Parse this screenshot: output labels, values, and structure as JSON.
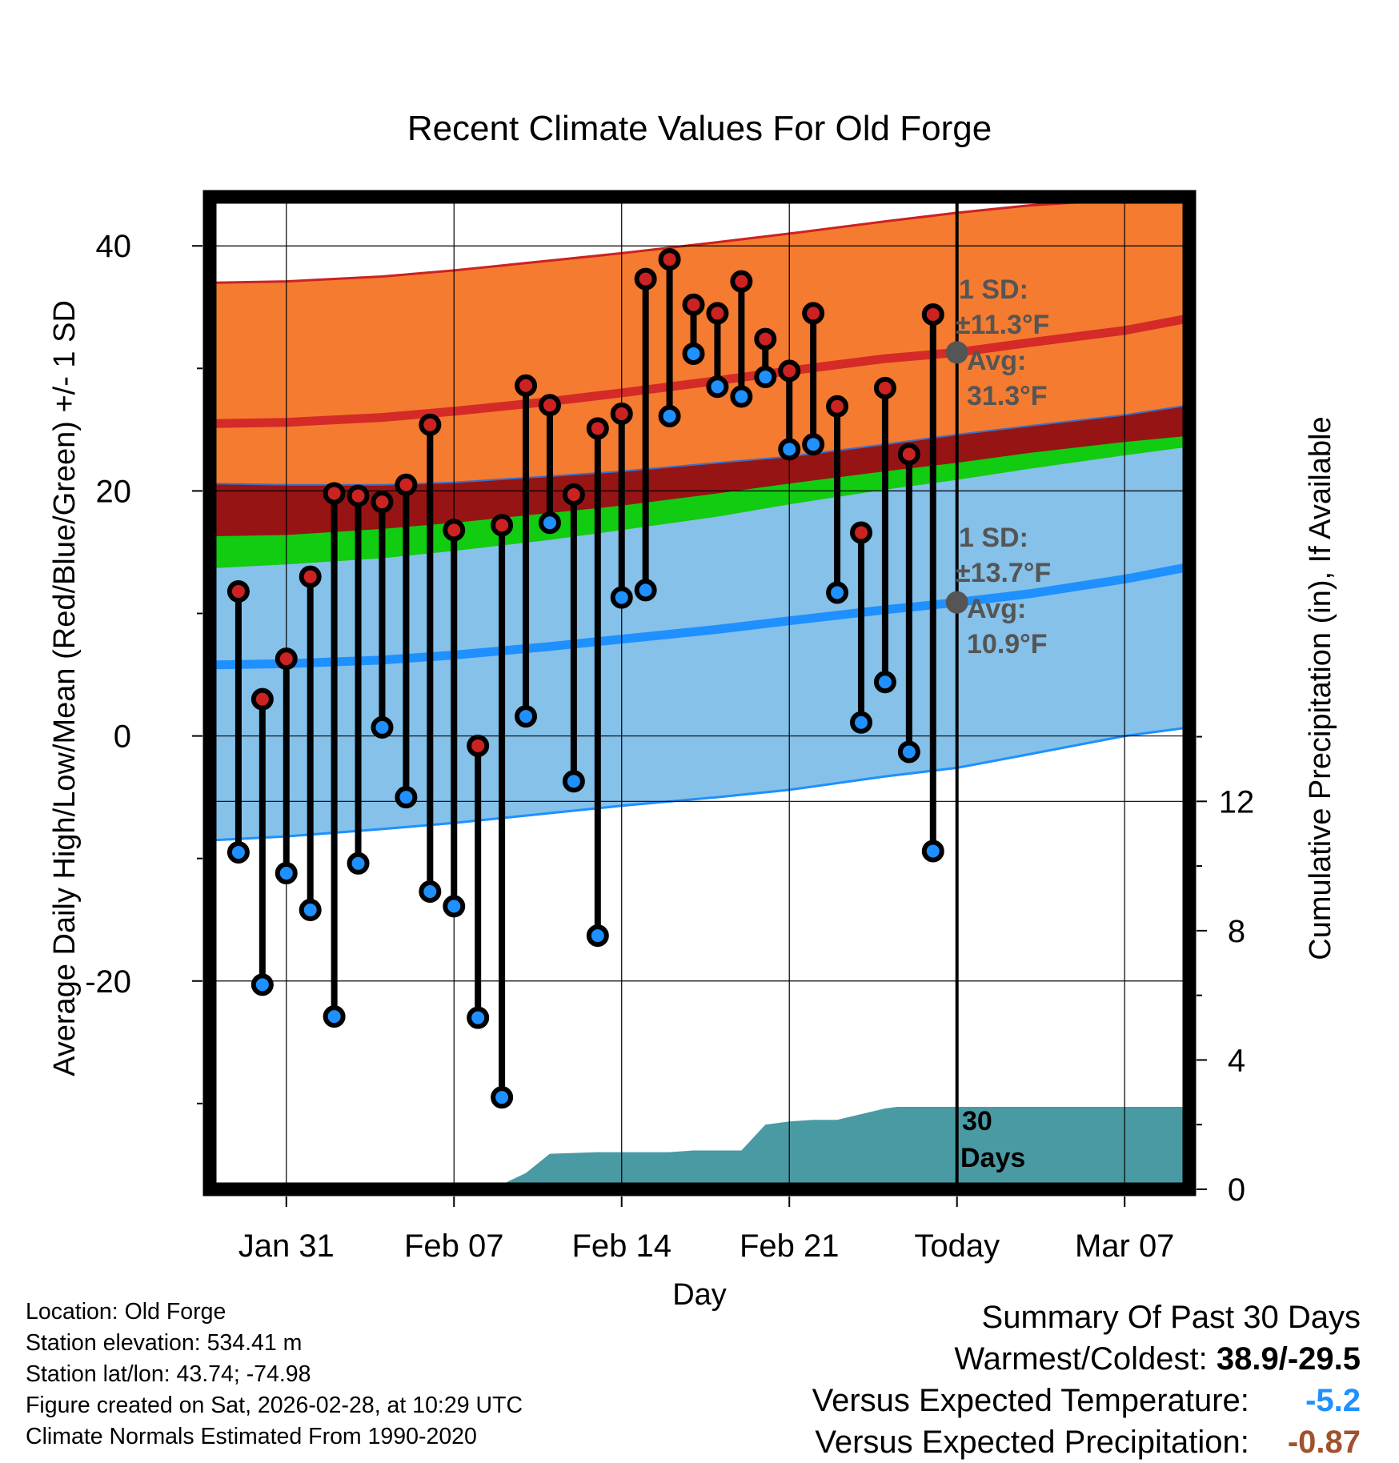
{
  "chart_data": {
    "type": "line",
    "title": "Recent Climate Values For Old Forge",
    "xlabel": "Day",
    "ylabel": "Average Daily High/Low/Mean (Red/Blue/Green) +/- 1 SD",
    "y2label": "Cumulative Precipitation (in), If Available",
    "ylim": [
      -37,
      44
    ],
    "y2lim": [
      0,
      30.7
    ],
    "x_tick_labels": [
      "Jan 31",
      "Feb 07",
      "Feb 14",
      "Feb 21",
      "Today",
      "Mar 07"
    ],
    "y_ticks": [
      40,
      20,
      0,
      -20
    ],
    "y_tick_labels": [
      "40",
      "20",
      "0",
      "-20"
    ],
    "y2_ticks": [
      12,
      8,
      4,
      0
    ],
    "y2_tick_labels": [
      "12",
      "8",
      "4",
      "0"
    ],
    "x_day_range": [
      -31.2,
      9.7
    ],
    "x_tick_days": [
      -28,
      -21,
      -14,
      -7,
      0,
      7
    ],
    "normals": {
      "day": [
        -31,
        -28,
        -24,
        -21,
        -17,
        -14,
        -10,
        -7,
        -3,
        0,
        3,
        7,
        9.7
      ],
      "high_mean": [
        25.5,
        25.6,
        26.0,
        26.5,
        27.3,
        28.0,
        29.0,
        29.8,
        30.8,
        31.3,
        32.1,
        33.1,
        34.1
      ],
      "high_plus_sd": [
        37.0,
        37.1,
        37.5,
        38.0,
        38.8,
        39.4,
        40.3,
        41.0,
        42.0,
        42.7,
        43.3,
        43.8,
        43.9
      ],
      "high_minus_sd": [
        20.6,
        20.5,
        20.5,
        20.7,
        21.2,
        21.6,
        22.3,
        22.8,
        23.8,
        24.6,
        25.3,
        26.2,
        27.0
      ],
      "low_mean": [
        5.8,
        5.9,
        6.2,
        6.6,
        7.3,
        7.9,
        8.7,
        9.4,
        10.3,
        10.9,
        11.6,
        12.8,
        13.8
      ],
      "low_plus_sd": [
        13.7,
        14.0,
        14.5,
        15.1,
        16.0,
        16.8,
        17.9,
        18.9,
        20.1,
        20.9,
        21.8,
        22.9,
        23.6
      ],
      "low_minus_sd": [
        -8.5,
        -8.2,
        -7.6,
        -7.1,
        -6.3,
        -5.7,
        -5.0,
        -4.4,
        -3.3,
        -2.6,
        -1.5,
        0.0,
        0.7
      ],
      "mean_avg_top": [
        16.3,
        16.4,
        16.9,
        17.4,
        18.2,
        18.8,
        19.8,
        20.6,
        21.6,
        22.3,
        23.1,
        24.0,
        24.5
      ]
    },
    "series": [
      {
        "name": "Daily High",
        "day": [
          -30,
          -29,
          -28,
          -27,
          -26,
          -25,
          -24,
          -23,
          -22,
          -21,
          -20,
          -19,
          -18,
          -17,
          -16,
          -15,
          -14,
          -13,
          -12,
          -11,
          -10,
          -9,
          -8,
          -7,
          -6,
          -5,
          -4,
          -3,
          -2,
          -1
        ],
        "values": [
          11.8,
          3.0,
          6.3,
          13.0,
          19.8,
          19.6,
          19.1,
          20.5,
          25.4,
          16.8,
          -0.8,
          17.2,
          28.6,
          27.0,
          19.7,
          25.1,
          26.3,
          37.3,
          38.9,
          35.2,
          34.5,
          37.1,
          32.4,
          29.8,
          34.5,
          26.9,
          16.6,
          28.4,
          23.0,
          34.4
        ]
      },
      {
        "name": "Daily Low",
        "day": [
          -30,
          -29,
          -28,
          -27,
          -26,
          -25,
          -24,
          -23,
          -22,
          -21,
          -20,
          -19,
          -18,
          -17,
          -16,
          -15,
          -14,
          -13,
          -12,
          -11,
          -10,
          -9,
          -8,
          -7,
          -6,
          -5,
          -4,
          -3,
          -2,
          -1
        ],
        "values": [
          -9.5,
          -20.3,
          -11.2,
          -14.2,
          -22.9,
          -10.4,
          0.7,
          -5.0,
          -12.7,
          -13.9,
          -23.0,
          -29.5,
          1.6,
          17.4,
          -3.7,
          -16.3,
          11.3,
          11.9,
          26.1,
          31.2,
          28.5,
          27.7,
          29.3,
          23.4,
          23.8,
          11.7,
          1.1,
          4.4,
          -1.3,
          -9.4
        ]
      },
      {
        "name": "Cumulative Precipitation",
        "day": [
          -31.2,
          -21.5,
          -21,
          -19,
          -18,
          -17,
          -15,
          -12,
          -11,
          -9,
          -8,
          -7,
          -6,
          -5,
          -3,
          -2.5,
          0,
          9.7
        ],
        "values": [
          0,
          0,
          0.15,
          0.15,
          0.5,
          1.1,
          1.15,
          1.15,
          1.2,
          1.2,
          2.0,
          2.1,
          2.15,
          2.15,
          2.5,
          2.55,
          2.55,
          2.55
        ]
      }
    ],
    "annotations": {
      "high_sd_label": "1 SD:",
      "high_sd_value": "±11.3°F",
      "high_avg_label": "Avg:",
      "high_avg_value": "31.3°F",
      "low_sd_label": "1 SD:",
      "low_sd_value": "±13.7°F",
      "low_avg_label": "Avg:",
      "low_avg_value": "10.9°F",
      "days_number": "30",
      "days_word": "Days"
    },
    "colors": {
      "high_band": "#f57b30",
      "high_mean_line": "#d42a28",
      "overlap_band": "#971414",
      "mean_band": "#11cc11",
      "low_band": "#85c1e9",
      "low_mean_line": "#1e90ff",
      "precip_fill": "#4a9aa4",
      "high_marker": "#cc2222",
      "low_marker": "#1e90ff",
      "annotation_gray": "#555555",
      "temp_anomaly": "#1e90ff",
      "precip_anomaly": "#a0522d"
    }
  },
  "info": {
    "location": "Location: Old Forge",
    "elevation": "Station elevation: 534.41 m",
    "latlon": "Station lat/lon: 43.74; -74.98",
    "created": "Figure created on Sat, 2026-02-28, at 10:29 UTC",
    "normals": "Climate Normals Estimated From 1990-2020"
  },
  "summary": {
    "title": "Summary Of Past 30 Days",
    "warmest_coldest_label": "Warmest/Coldest:",
    "warmest_coldest_value": "38.9/-29.5",
    "temp_label": "Versus Expected Temperature:",
    "temp_value": "-5.2",
    "precip_label": "Versus Expected Precipitation:",
    "precip_value": "-0.87"
  }
}
